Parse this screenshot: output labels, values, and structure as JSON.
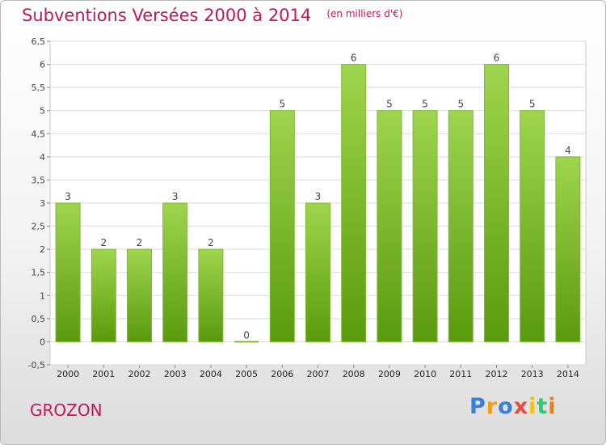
{
  "chart_data": {
    "type": "bar",
    "title": "Subventions Versées 2000 à 2014",
    "unit_note": "(en milliers d'€)",
    "categories": [
      "2000",
      "2001",
      "2002",
      "2003",
      "2004",
      "2005",
      "2006",
      "2007",
      "2008",
      "2009",
      "2010",
      "2011",
      "2012",
      "2013",
      "2014"
    ],
    "values": [
      3,
      2,
      2,
      3,
      2,
      0,
      5,
      3,
      6,
      5,
      5,
      5,
      6,
      5,
      4
    ],
    "value_labels": [
      "3",
      "2",
      "2",
      "3",
      "2",
      "0",
      "5",
      "3",
      "6",
      "5",
      "5",
      "5",
      "6",
      "5",
      "4"
    ],
    "ylim": [
      -0.5,
      6.5
    ],
    "yticks": [
      "-0,5",
      "0",
      "0,5",
      "1",
      "1,5",
      "2",
      "2,5",
      "3",
      "3,5",
      "4",
      "4,5",
      "5",
      "5,5",
      "6",
      "6,5"
    ],
    "ytick_values": [
      -0.5,
      0,
      0.5,
      1,
      1.5,
      2,
      2.5,
      3,
      3.5,
      4,
      4.5,
      5,
      5.5,
      6,
      6.5
    ],
    "grid": true,
    "bar_color_top": "#9fd54e",
    "bar_color_bottom": "#5a9a0e"
  },
  "footer": {
    "commune": "GROZON",
    "brand_letters": [
      {
        "ch": "P",
        "color": "#3a7fd4"
      },
      {
        "ch": "r",
        "color": "#f39c12"
      },
      {
        "ch": "o",
        "color": "#3a7fd4"
      },
      {
        "ch": "x",
        "color": "#e74c3c"
      },
      {
        "ch": "i",
        "color": "#f1c40f"
      },
      {
        "ch": "t",
        "color": "#2ecc71"
      },
      {
        "ch": "i",
        "color": "#e67e22"
      }
    ]
  }
}
